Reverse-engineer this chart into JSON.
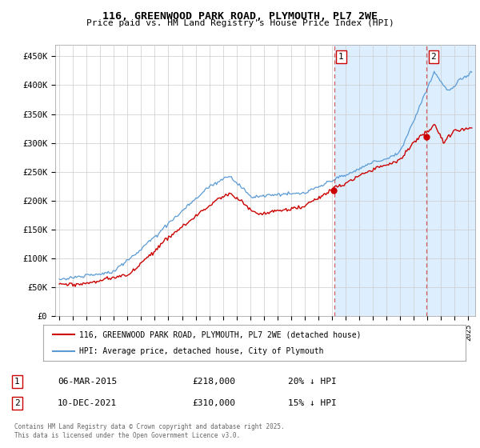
{
  "title": "116, GREENWOOD PARK ROAD, PLYMOUTH, PL7 2WE",
  "subtitle": "Price paid vs. HM Land Registry's House Price Index (HPI)",
  "ylabel_ticks": [
    "£0",
    "£50K",
    "£100K",
    "£150K",
    "£200K",
    "£250K",
    "£300K",
    "£350K",
    "£400K",
    "£450K"
  ],
  "ytick_values": [
    0,
    50000,
    100000,
    150000,
    200000,
    250000,
    300000,
    350000,
    400000,
    450000
  ],
  "ylim": [
    0,
    470000
  ],
  "xlim_start": 1994.7,
  "xlim_end": 2025.5,
  "hpi_color": "#5b9bd5",
  "price_color": "#cc0000",
  "shade_color": "#ddeeff",
  "marker1_x": 2015.17,
  "marker2_x": 2021.94,
  "marker1_price": 218000,
  "marker2_price": 310000,
  "legend_label1": "116, GREENWOOD PARK ROAD, PLYMOUTH, PL7 2WE (detached house)",
  "legend_label2": "HPI: Average price, detached house, City of Plymouth",
  "table_row1": [
    "1",
    "06-MAR-2015",
    "£218,000",
    "20% ↓ HPI"
  ],
  "table_row2": [
    "2",
    "10-DEC-2021",
    "£310,000",
    "15% ↓ HPI"
  ],
  "footer": "Contains HM Land Registry data © Crown copyright and database right 2025.\nThis data is licensed under the Open Government Licence v3.0.",
  "background_color": "#ffffff",
  "plot_bg_color": "#ffffff",
  "grid_color": "#cccccc"
}
